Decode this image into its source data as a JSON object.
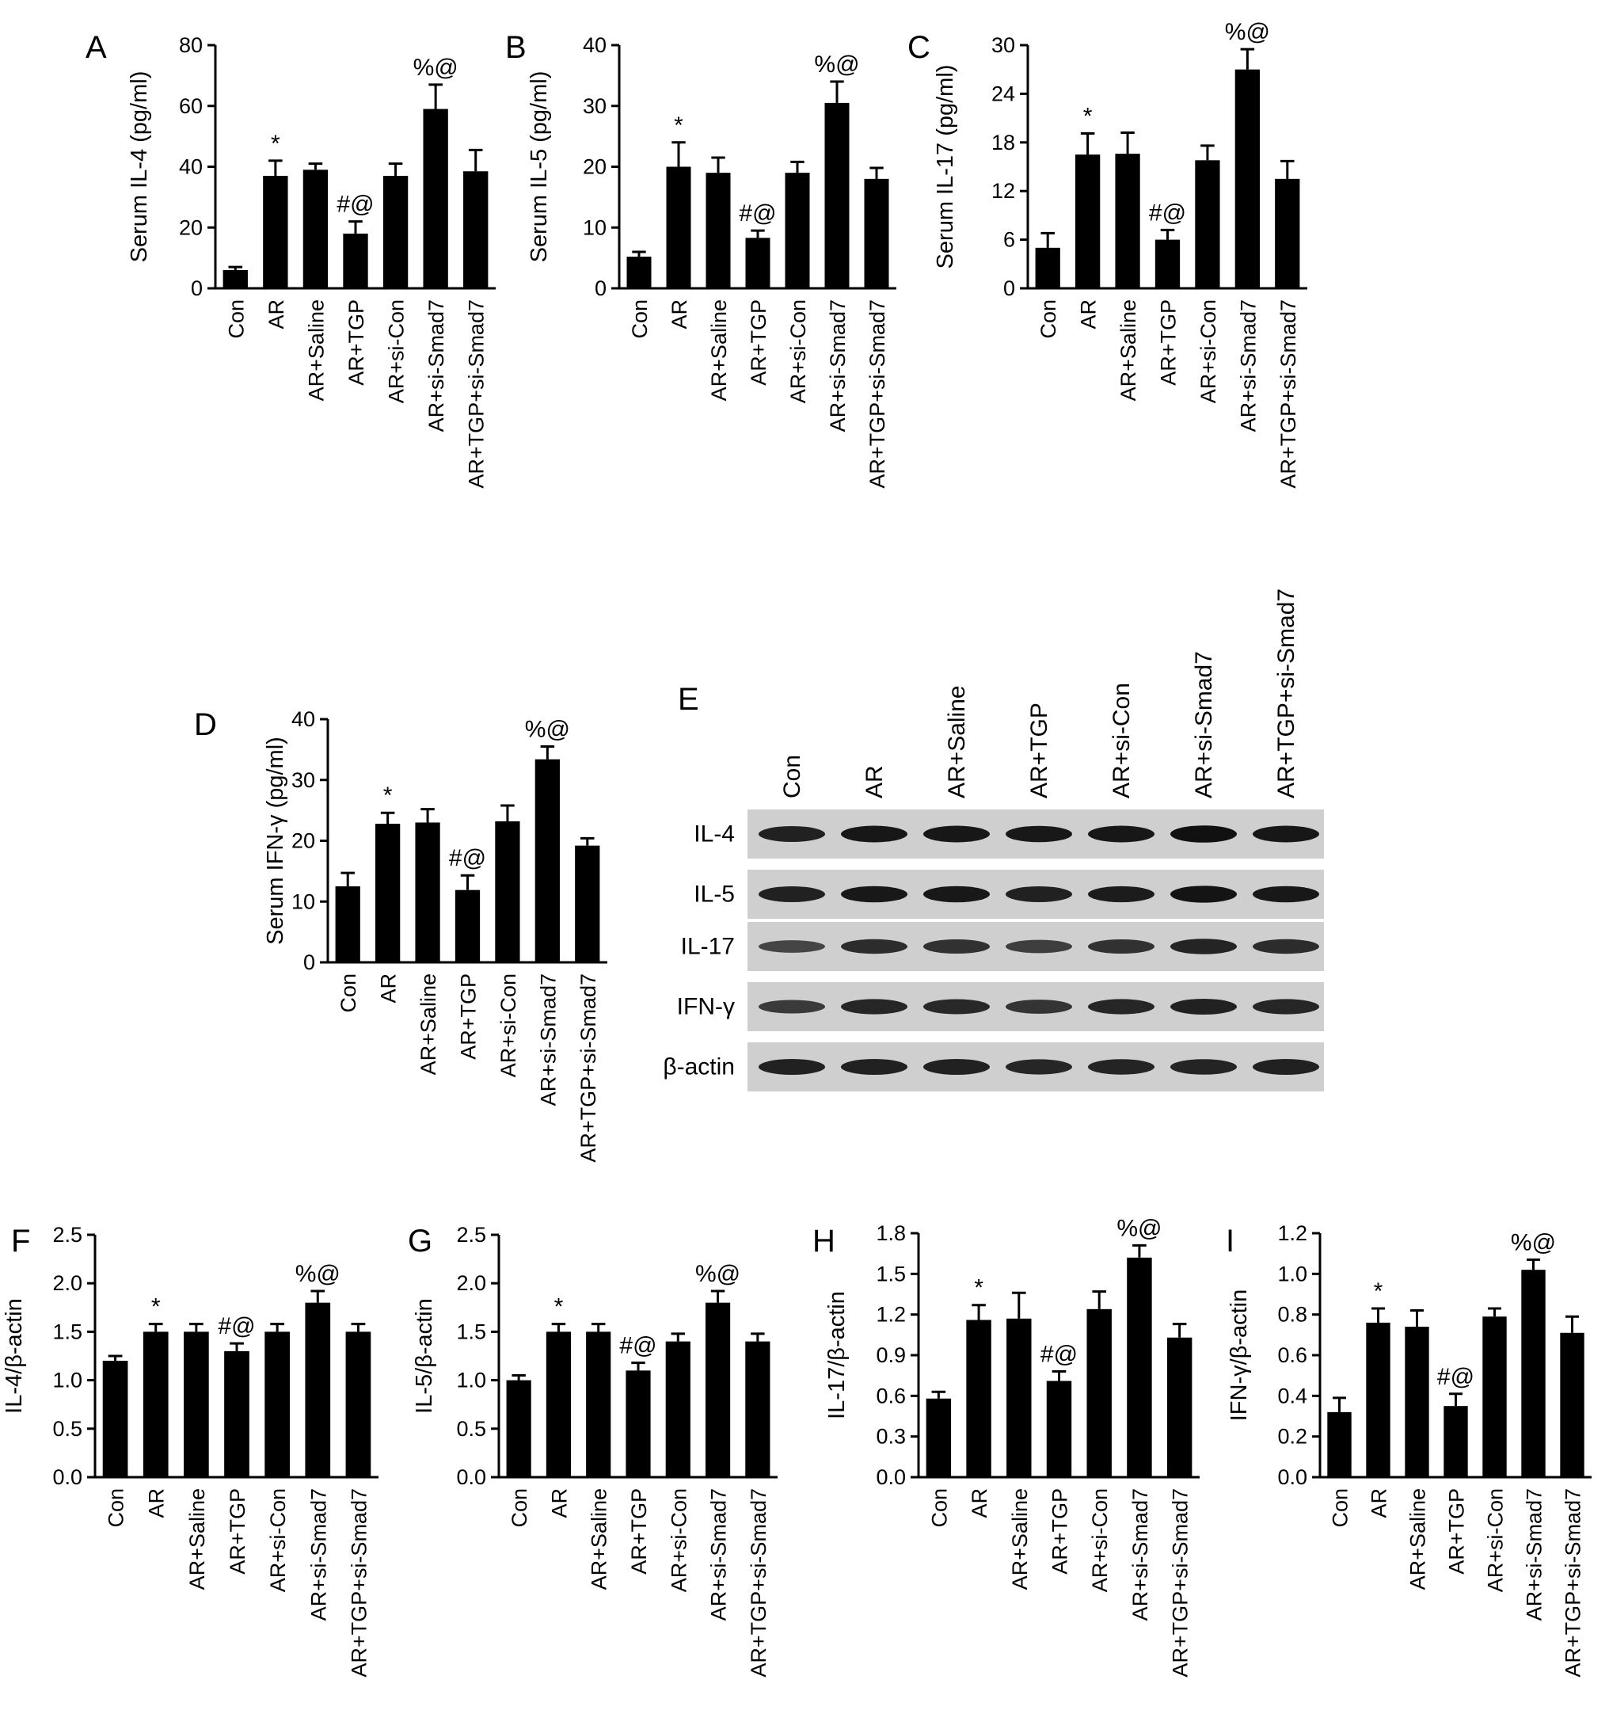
{
  "figure": {
    "panel_letters": [
      "A",
      "B",
      "C",
      "D",
      "E",
      "F",
      "G",
      "H",
      "I"
    ]
  },
  "chart_data": [
    {
      "id": "A",
      "type": "bar",
      "categories": [
        "Con",
        "AR",
        "AR+Saline",
        "AR+TGP",
        "AR+si-Con",
        "AR+si-Smad7",
        "AR+TGP+si-Smad7"
      ],
      "values": [
        6,
        37,
        39,
        18,
        37,
        59,
        38.5
      ],
      "errors": [
        1,
        5,
        2,
        4,
        4,
        8,
        7
      ],
      "annotations": [
        "",
        "*",
        "",
        "#@",
        "",
        "%@",
        ""
      ],
      "ylabel": "Serum IL-4 (pg/ml)",
      "ylim": [
        0,
        80
      ],
      "yticks": [
        "0",
        "20",
        "40",
        "60",
        "80"
      ]
    },
    {
      "id": "B",
      "type": "bar",
      "categories": [
        "Con",
        "AR",
        "AR+Saline",
        "AR+TGP",
        "AR+si-Con",
        "AR+si-Smad7",
        "AR+TGP+si-Smad7"
      ],
      "values": [
        5.2,
        20,
        19,
        8.3,
        19,
        30.5,
        18
      ],
      "errors": [
        0.8,
        4,
        2.5,
        1.2,
        1.8,
        3.5,
        1.8
      ],
      "annotations": [
        "",
        "*",
        "",
        "#@",
        "",
        "%@",
        ""
      ],
      "ylabel": "Serum IL-5 (pg/ml)",
      "ylim": [
        0,
        40
      ],
      "yticks": [
        "0",
        "10",
        "20",
        "30",
        "40"
      ]
    },
    {
      "id": "C",
      "type": "bar",
      "categories": [
        "Con",
        "AR",
        "AR+Saline",
        "AR+TGP",
        "AR+si-Con",
        "AR+si-Smad7",
        "AR+TGP+si-Smad7"
      ],
      "values": [
        5,
        16.5,
        16.6,
        6,
        15.8,
        27,
        13.5
      ],
      "errors": [
        1.8,
        2.6,
        2.6,
        1.2,
        1.8,
        2.5,
        2.2
      ],
      "annotations": [
        "",
        "*",
        "",
        "#@",
        "",
        "%@",
        ""
      ],
      "ylabel": "Serum IL-17 (pg/ml)",
      "ylim": [
        0,
        30
      ],
      "yticks": [
        "0",
        "6",
        "12",
        "18",
        "24",
        "30"
      ]
    },
    {
      "id": "D",
      "type": "bar",
      "categories": [
        "Con",
        "AR",
        "AR+Saline",
        "AR+TGP",
        "AR+si-Con",
        "AR+si-Smad7",
        "AR+TGP+si-Smad7"
      ],
      "values": [
        12.5,
        22.8,
        23,
        11.9,
        23.2,
        33.4,
        19.2
      ],
      "errors": [
        2.2,
        1.8,
        2.2,
        2.4,
        2.6,
        2.1,
        1.2
      ],
      "annotations": [
        "",
        "*",
        "",
        "#@",
        "",
        "%@",
        ""
      ],
      "ylabel": "Serum IFN-γ (pg/ml)",
      "ylim": [
        0,
        40
      ],
      "yticks": [
        "0",
        "10",
        "20",
        "30",
        "40"
      ]
    },
    {
      "id": "F",
      "type": "bar",
      "categories": [
        "Con",
        "AR",
        "AR+Saline",
        "AR+TGP",
        "AR+si-Con",
        "AR+si-Smad7",
        "AR+TGP+si-Smad7"
      ],
      "values": [
        1.2,
        1.5,
        1.5,
        1.3,
        1.5,
        1.8,
        1.5
      ],
      "errors": [
        0.05,
        0.08,
        0.08,
        0.08,
        0.08,
        0.12,
        0.08
      ],
      "annotations": [
        "",
        "*",
        "",
        "#@",
        "",
        "%@",
        ""
      ],
      "ylabel": "IL-4/β-actin",
      "ylim": [
        0,
        2.5
      ],
      "yticks": [
        "0.0",
        "0.5",
        "1.0",
        "1.5",
        "2.0",
        "2.5"
      ]
    },
    {
      "id": "G",
      "type": "bar",
      "categories": [
        "Con",
        "AR",
        "AR+Saline",
        "AR+TGP",
        "AR+si-Con",
        "AR+si-Smad7",
        "AR+TGP+si-Smad7"
      ],
      "values": [
        1.0,
        1.5,
        1.5,
        1.1,
        1.4,
        1.8,
        1.4
      ],
      "errors": [
        0.05,
        0.08,
        0.08,
        0.08,
        0.08,
        0.12,
        0.08
      ],
      "annotations": [
        "",
        "*",
        "",
        "#@",
        "",
        "%@",
        ""
      ],
      "ylabel": "IL-5/β-actin",
      "ylim": [
        0,
        2.5
      ],
      "yticks": [
        "0.0",
        "0.5",
        "1.0",
        "1.5",
        "2.0",
        "2.5"
      ]
    },
    {
      "id": "H",
      "type": "bar",
      "categories": [
        "Con",
        "AR",
        "AR+Saline",
        "AR+TGP",
        "AR+si-Con",
        "AR+si-Smad7",
        "AR+TGP+si-Smad7"
      ],
      "values": [
        0.58,
        1.16,
        1.17,
        0.71,
        1.24,
        1.62,
        1.03
      ],
      "errors": [
        0.05,
        0.11,
        0.19,
        0.07,
        0.13,
        0.09,
        0.1
      ],
      "annotations": [
        "",
        "*",
        "",
        "#@",
        "",
        "%@",
        ""
      ],
      "ylabel": "IL-17/β-actin",
      "ylim": [
        0,
        1.8
      ],
      "yticks": [
        "0.0",
        "0.3",
        "0.6",
        "0.9",
        "1.2",
        "1.5",
        "1.8"
      ]
    },
    {
      "id": "I",
      "type": "bar",
      "categories": [
        "Con",
        "AR",
        "AR+Saline",
        "AR+TGP",
        "AR+si-Con",
        "AR+si-Smad7",
        "AR+TGP+si-Smad7"
      ],
      "values": [
        0.32,
        0.76,
        0.74,
        0.35,
        0.79,
        1.02,
        0.71
      ],
      "errors": [
        0.07,
        0.07,
        0.08,
        0.06,
        0.04,
        0.05,
        0.08
      ],
      "annotations": [
        "",
        "*",
        "",
        "#@",
        "",
        "%@",
        ""
      ],
      "ylabel": "IFN-γ/β-actin",
      "ylim": [
        0,
        1.2
      ],
      "yticks": [
        "0.0",
        "0.2",
        "0.4",
        "0.6",
        "0.8",
        "1.0",
        "1.2"
      ]
    }
  ],
  "blot": {
    "id": "E",
    "lanes": [
      "Con",
      "AR",
      "AR+Saline",
      "AR+TGP",
      "AR+si-Con",
      "AR+si-Smad7",
      "AR+TGP+si-Smad7"
    ],
    "rows": [
      "IL-4",
      "IL-5",
      "IL-17",
      "IFN-γ",
      "β-actin"
    ],
    "band_intensity": [
      [
        0.85,
        0.92,
        0.92,
        0.9,
        0.92,
        0.97,
        0.92
      ],
      [
        0.85,
        0.9,
        0.9,
        0.85,
        0.88,
        0.95,
        0.9
      ],
      [
        0.55,
        0.75,
        0.72,
        0.62,
        0.72,
        0.82,
        0.75
      ],
      [
        0.65,
        0.8,
        0.78,
        0.7,
        0.8,
        0.85,
        0.8
      ],
      [
        0.85,
        0.85,
        0.85,
        0.8,
        0.82,
        0.82,
        0.85
      ]
    ],
    "colors": {
      "background": "#cfcfcf",
      "band": "#0d0d0d"
    }
  },
  "colors": {
    "bar": "#000000",
    "axis": "#000000",
    "background": "#ffffff"
  }
}
